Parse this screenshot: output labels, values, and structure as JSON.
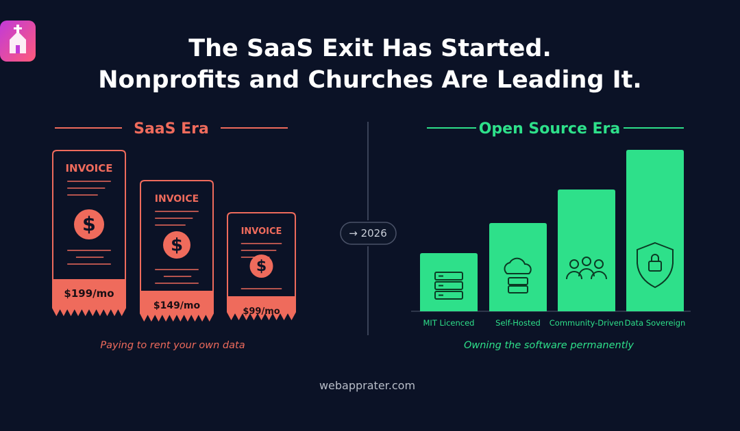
{
  "header": {
    "title_line1": "The SaaS Exit Has Started.",
    "title_line2": "Nonprofits and Churches Are Leading It."
  },
  "left": {
    "heading": "SaaS Era",
    "invoices": [
      {
        "label": "INVOICE",
        "price": "$199/mo"
      },
      {
        "label": "INVOICE",
        "price": "$149/mo"
      },
      {
        "label": "INVOICE",
        "price": "$99/mo"
      }
    ],
    "caption": "Paying to rent your own data"
  },
  "divider": {
    "label": "→ 2026"
  },
  "right": {
    "heading": "Open Source Era",
    "pillars": [
      {
        "label": "MIT Licenced"
      },
      {
        "label": "Self-Hosted"
      },
      {
        "label": "Community-Driven"
      },
      {
        "label": "Data Sovereign"
      }
    ],
    "caption": "Owning the software permanently"
  },
  "footer": {
    "site": "webapprater.com"
  }
}
